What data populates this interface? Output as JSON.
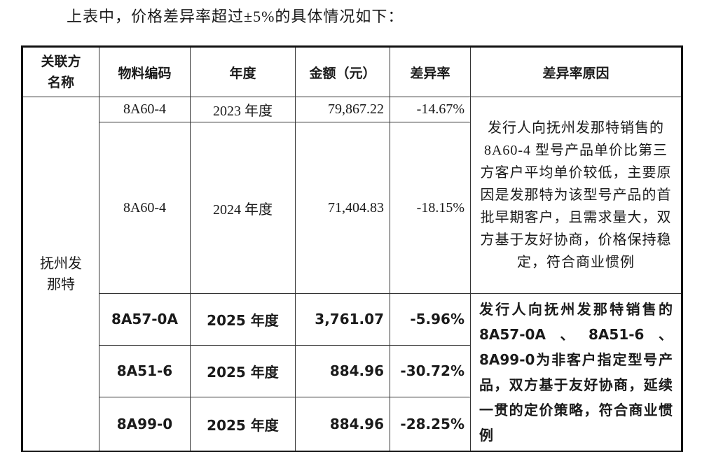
{
  "intro": "上表中，价格差异率超过±5%的具体情况如下：",
  "table": {
    "headers": [
      "关联方名称",
      "物料编码",
      "年度",
      "金额（元）",
      "差异率",
      "差异率原因"
    ],
    "party": "抚州发那特",
    "rows": [
      [
        "8A60-4",
        "2023 年度",
        "79,867.22",
        "-14.67%"
      ],
      [
        "8A60-4",
        "2024 年度",
        "71,404.83",
        "-18.15%"
      ],
      [
        "8A57-0A",
        "2025 年度",
        "3,761.07",
        "-5.96%"
      ],
      [
        "8A51-6",
        "2025 年度",
        "884.96",
        "-30.72%"
      ],
      [
        "8A99-0",
        "2025 年度",
        "884.96",
        "-28.25%"
      ]
    ],
    "reasons": [
      "发行人向抚州发那特销售的 8A60-4 型号产品单价比第三方客户平均单价较低，主要原因是发那特为该型号产品的首批早期客户，且需求量大，双方基于友好协商，价格保持稳定，符合商业惯例",
      "发行人向抚州发那特销售的8A57-0A、8A51-6、8A99-0为非客户指定型号产品，双方基于友好协商，延续一贯的定价策略，符合商业惯例"
    ]
  }
}
